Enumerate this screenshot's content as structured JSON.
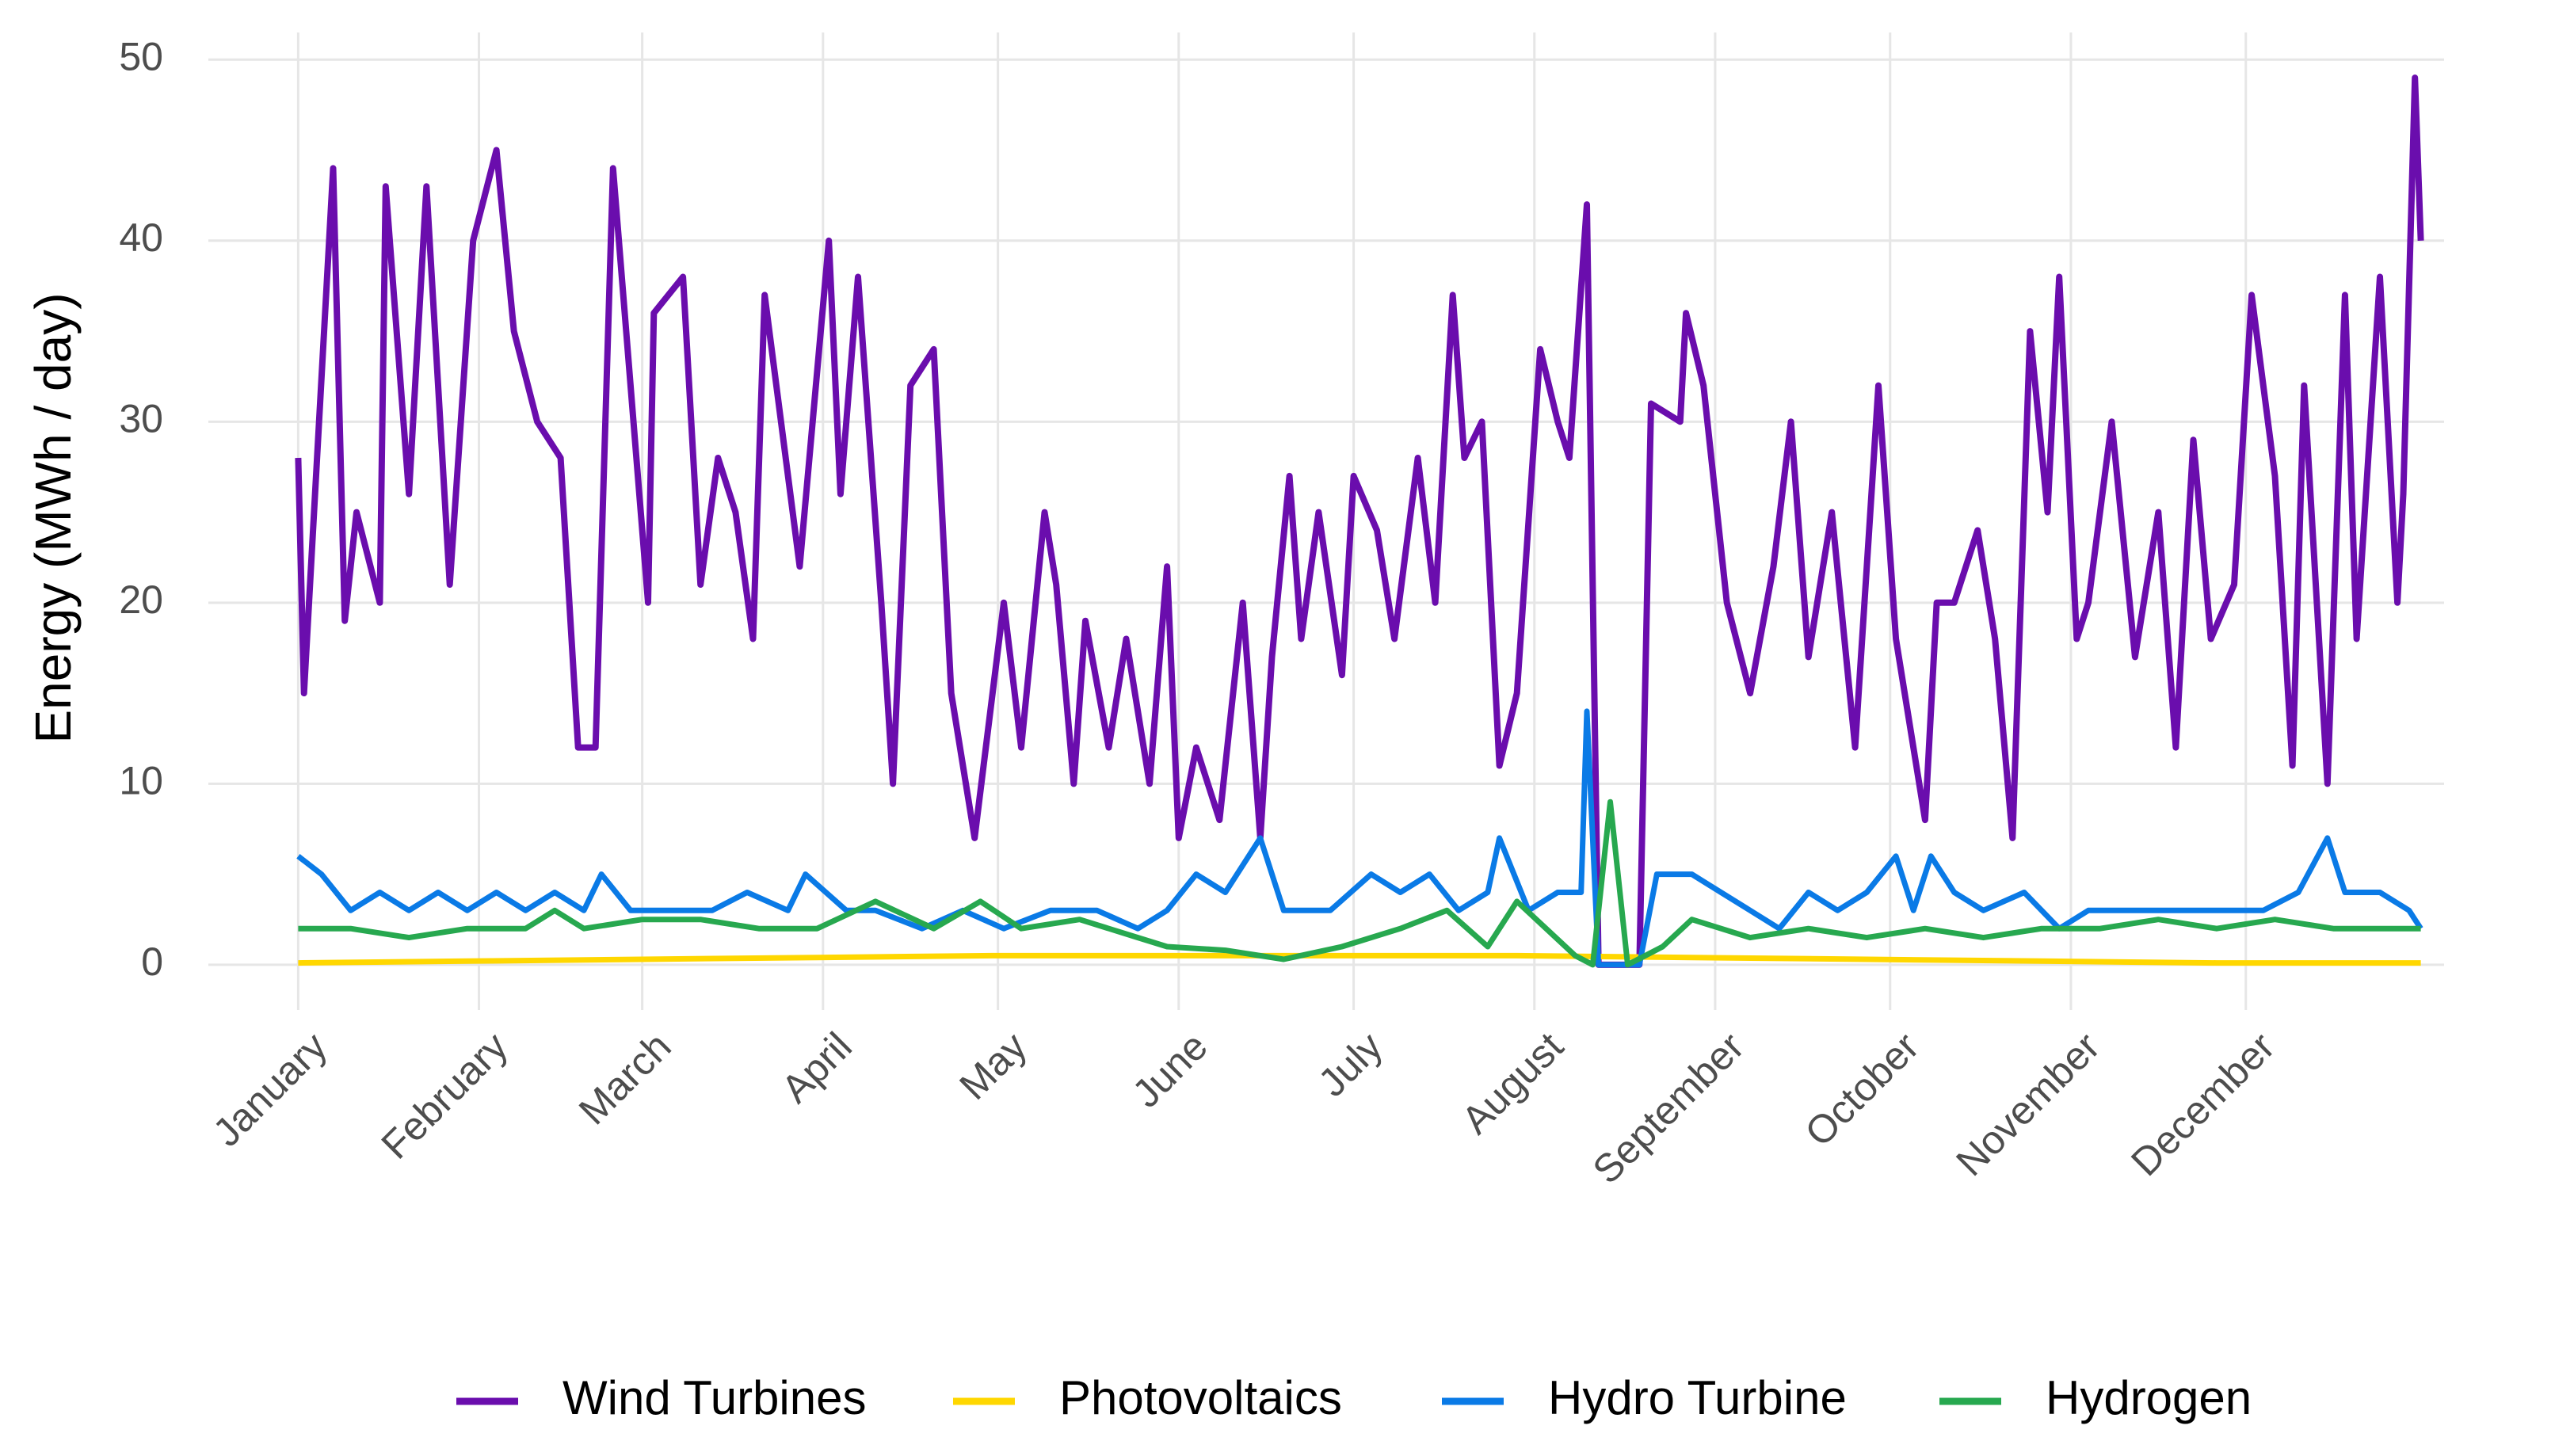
{
  "chart_data": {
    "type": "line",
    "ylabel": "Energy (MWh / day)",
    "xlim": [
      -14.4,
      369
    ],
    "xticks": [
      {
        "value": 1,
        "label": "January"
      },
      {
        "value": 32,
        "label": "February"
      },
      {
        "value": 60,
        "label": "March"
      },
      {
        "value": 91,
        "label": "April"
      },
      {
        "value": 121,
        "label": "May"
      },
      {
        "value": 152,
        "label": "June"
      },
      {
        "value": 182,
        "label": "July"
      },
      {
        "value": 213,
        "label": "August"
      },
      {
        "value": 244,
        "label": "September"
      },
      {
        "value": 274,
        "label": "October"
      },
      {
        "value": 305,
        "label": "November"
      },
      {
        "value": 335,
        "label": "December"
      }
    ],
    "ylim": [
      -2.5,
      51.5
    ],
    "yticks": [
      0,
      10,
      20,
      30,
      40,
      50
    ],
    "grid": true,
    "legend": "bottom",
    "series": [
      {
        "name": "Wind Turbines",
        "color": "#6a0dad",
        "x": [
          1,
          2,
          7,
          9,
          11,
          15,
          16,
          20,
          23,
          27,
          31,
          35,
          38,
          42,
          46,
          49,
          52,
          55,
          61,
          62,
          67,
          70,
          73,
          76,
          79,
          81,
          87,
          92,
          94,
          97,
          101,
          103,
          106,
          110,
          113,
          117,
          122,
          125,
          129,
          131,
          134,
          136,
          140,
          143,
          147,
          150,
          152,
          155,
          159,
          163,
          166,
          168,
          171,
          173,
          176,
          180,
          182,
          186,
          189,
          193,
          196,
          199,
          201,
          204,
          207,
          210,
          214,
          217,
          219,
          222,
          224,
          231,
          233,
          238,
          239,
          242,
          246,
          250,
          254,
          257,
          260,
          264,
          268,
          271,
          272,
          275,
          280,
          282,
          285,
          289,
          292,
          295,
          298,
          301,
          303,
          306,
          308,
          312,
          316,
          320,
          323,
          326,
          329,
          333,
          336,
          340,
          343,
          345,
          349,
          352,
          354,
          358,
          361,
          362,
          364,
          365
        ],
        "values": [
          28,
          15,
          44,
          19,
          25,
          20,
          43,
          26,
          43,
          21,
          40,
          45,
          35,
          30,
          28,
          12,
          12,
          44,
          20,
          36,
          38,
          21,
          28,
          25,
          18,
          37,
          22,
          40,
          26,
          38,
          20,
          10,
          32,
          34,
          15,
          7,
          20,
          12,
          25,
          21,
          10,
          19,
          12,
          18,
          10,
          22,
          7,
          12,
          8,
          20,
          7,
          17,
          27,
          18,
          25,
          16,
          27,
          24,
          18,
          28,
          20,
          37,
          28,
          30,
          11,
          15,
          34,
          30,
          28,
          42,
          0,
          0,
          31,
          30,
          36,
          32,
          20,
          15,
          22,
          30,
          17,
          25,
          12,
          27,
          32,
          18,
          8,
          20,
          20,
          24,
          18,
          7,
          35,
          25,
          38,
          18,
          20,
          30,
          17,
          25,
          12,
          29,
          18,
          21,
          37,
          27,
          11,
          32,
          10,
          37,
          18,
          38,
          20,
          26,
          49,
          40
        ]
      },
      {
        "name": "Photovoltaics",
        "color": "#ffd700",
        "x": [
          1,
          30,
          60,
          90,
          120,
          150,
          180,
          210,
          240,
          270,
          300,
          330,
          365
        ],
        "values": [
          0.1,
          0.2,
          0.3,
          0.4,
          0.5,
          0.5,
          0.5,
          0.5,
          0.4,
          0.3,
          0.2,
          0.1,
          0.1
        ]
      },
      {
        "name": "Hydro Turbine",
        "color": "#0a7ae6",
        "x": [
          1,
          5,
          10,
          15,
          20,
          25,
          30,
          35,
          40,
          45,
          50,
          53,
          58,
          65,
          72,
          78,
          85,
          88,
          95,
          100,
          108,
          115,
          122,
          130,
          138,
          145,
          150,
          155,
          160,
          166,
          170,
          178,
          185,
          190,
          195,
          200,
          205,
          207,
          212,
          217,
          221,
          222,
          224,
          231,
          234,
          240,
          245,
          250,
          255,
          260,
          265,
          270,
          275,
          278,
          281,
          285,
          290,
          297,
          303,
          308,
          315,
          320,
          327,
          332,
          338,
          344,
          349,
          352,
          358,
          363,
          365
        ],
        "values": [
          6,
          5,
          3,
          4,
          3,
          4,
          3,
          4,
          3,
          4,
          3,
          5,
          3,
          3,
          3,
          4,
          3,
          5,
          3,
          3,
          2,
          3,
          2,
          3,
          3,
          2,
          3,
          5,
          4,
          7,
          3,
          3,
          5,
          4,
          5,
          3,
          4,
          7,
          3,
          4,
          4,
          14,
          0,
          0,
          5,
          5,
          4,
          3,
          2,
          4,
          3,
          4,
          6,
          3,
          6,
          4,
          3,
          4,
          2,
          3,
          3,
          3,
          3,
          3,
          3,
          4,
          7,
          4,
          4,
          3,
          2
        ]
      },
      {
        "name": "Hydrogen",
        "color": "#27a84f",
        "x": [
          1,
          10,
          20,
          30,
          40,
          45,
          50,
          60,
          70,
          80,
          90,
          100,
          110,
          118,
          125,
          135,
          145,
          150,
          160,
          170,
          180,
          190,
          198,
          205,
          210,
          220,
          223,
          226,
          229,
          235,
          240,
          250,
          260,
          270,
          280,
          290,
          300,
          310,
          320,
          330,
          340,
          350,
          365
        ],
        "values": [
          2,
          2,
          1.5,
          2,
          2,
          3,
          2,
          2.5,
          2.5,
          2,
          2,
          3.5,
          2,
          3.5,
          2,
          2.5,
          1.5,
          1,
          0.8,
          0.3,
          1,
          2,
          3,
          1,
          3.5,
          0.5,
          0,
          9,
          0,
          1,
          2.5,
          1.5,
          2,
          1.5,
          2,
          1.5,
          2,
          2,
          2.5,
          2,
          2.5,
          2,
          2
        ]
      }
    ]
  }
}
